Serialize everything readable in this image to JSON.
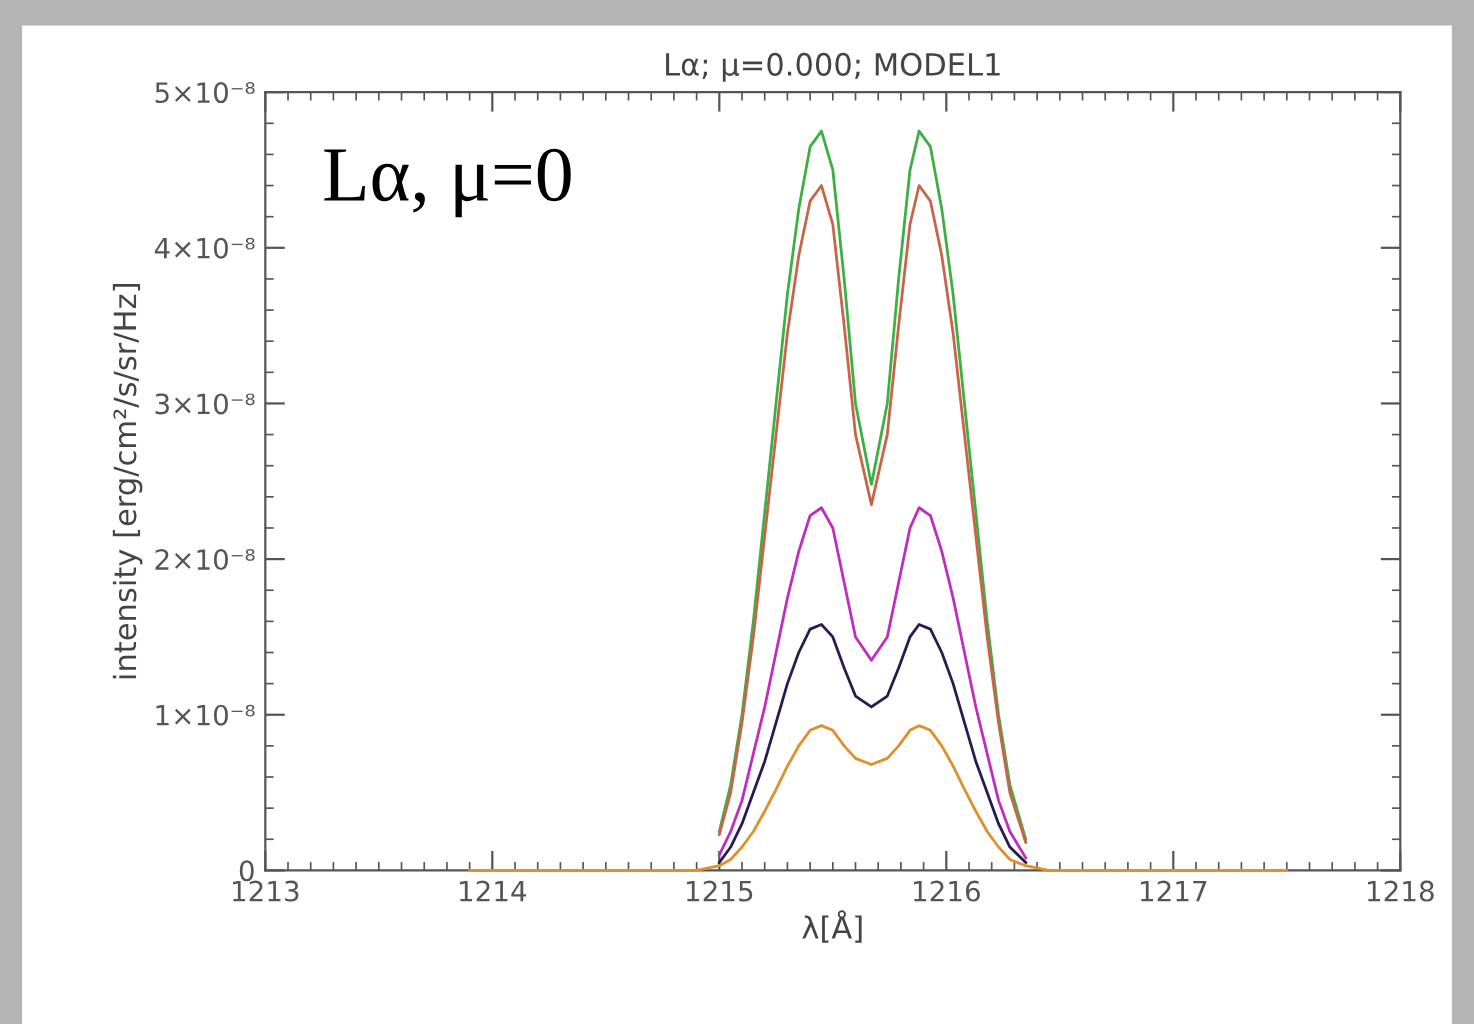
{
  "chart_data": {
    "type": "line",
    "title": "Lα; μ=0.000; MODEL1",
    "xlabel": "λ[Å]",
    "ylabel": "intensity [erg/cm²/s/sr/Hz]",
    "annotations": [
      "Lα, μ=0"
    ],
    "x": [
      1213.9,
      1214.9,
      1215.0,
      1215.05,
      1215.1,
      1215.15,
      1215.2,
      1215.25,
      1215.3,
      1215.35,
      1215.4,
      1215.45,
      1215.5,
      1215.55,
      1215.6,
      1215.67,
      1215.74,
      1215.79,
      1215.84,
      1215.88,
      1215.93,
      1215.98,
      1216.03,
      1216.08,
      1216.13,
      1216.18,
      1216.23,
      1216.28,
      1216.35,
      1216.45,
      1217.5
    ],
    "series": [
      {
        "color": "#3cb043",
        "values": [
          null,
          null,
          2.5e-09,
          5.5e-09,
          1e-08,
          1.6e-08,
          2.3e-08,
          3e-08,
          3.7e-08,
          4.25e-08,
          4.65e-08,
          4.75e-08,
          4.5e-08,
          3.8e-08,
          3e-08,
          2.48e-08,
          3e-08,
          3.8e-08,
          4.5e-08,
          4.75e-08,
          4.65e-08,
          4.25e-08,
          3.7e-08,
          3e-08,
          2.3e-08,
          1.6e-08,
          1e-08,
          5.5e-09,
          2e-09,
          null,
          null
        ]
      },
      {
        "color": "#c8644a",
        "values": [
          null,
          null,
          2.3e-09,
          5e-09,
          9.5e-09,
          1.5e-08,
          2.15e-08,
          2.8e-08,
          3.45e-08,
          3.95e-08,
          4.3e-08,
          4.4e-08,
          4.15e-08,
          3.5e-08,
          2.8e-08,
          2.35e-08,
          2.8e-08,
          3.5e-08,
          4.15e-08,
          4.4e-08,
          4.3e-08,
          3.95e-08,
          3.45e-08,
          2.8e-08,
          2.15e-08,
          1.5e-08,
          9.5e-09,
          5e-09,
          1.8e-09,
          null,
          null
        ]
      },
      {
        "color": "#c02cc0",
        "values": [
          null,
          null,
          1e-09,
          2.5e-09,
          4.5e-09,
          7.5e-09,
          1.05e-08,
          1.4e-08,
          1.75e-08,
          2.05e-08,
          2.28e-08,
          2.33e-08,
          2.2e-08,
          1.85e-08,
          1.5e-08,
          1.35e-08,
          1.5e-08,
          1.85e-08,
          2.2e-08,
          2.33e-08,
          2.28e-08,
          2.05e-08,
          1.75e-08,
          1.4e-08,
          1.05e-08,
          7.5e-09,
          4.5e-09,
          2.5e-09,
          8e-10,
          null,
          null
        ]
      },
      {
        "color": "#2a1a50",
        "values": [
          null,
          null,
          5e-10,
          1.5e-09,
          3e-09,
          5e-09,
          7e-09,
          9.5e-09,
          1.2e-08,
          1.4e-08,
          1.55e-08,
          1.58e-08,
          1.5e-08,
          1.3e-08,
          1.12e-08,
          1.05e-08,
          1.12e-08,
          1.3e-08,
          1.5e-08,
          1.58e-08,
          1.55e-08,
          1.4e-08,
          1.2e-08,
          9.5e-09,
          7e-09,
          5e-09,
          3e-09,
          1.5e-09,
          5e-10,
          null,
          null
        ]
      },
      {
        "color": "#e0902a",
        "values": [
          0,
          0,
          3e-10,
          7e-10,
          1.5e-09,
          2.5e-09,
          3.8e-09,
          5.2e-09,
          6.7e-09,
          8e-09,
          9e-09,
          9.3e-09,
          9e-09,
          8e-09,
          7.2e-09,
          6.8e-09,
          7.2e-09,
          8e-09,
          9e-09,
          9.3e-09,
          9e-09,
          8e-09,
          6.7e-09,
          5.2e-09,
          3.8e-09,
          2.5e-09,
          1.5e-09,
          7e-10,
          3e-10,
          0,
          0
        ]
      }
    ],
    "xlim": [
      1213,
      1218
    ],
    "xticks": [
      1213,
      1214,
      1215,
      1216,
      1217,
      1218
    ],
    "ylim": [
      0,
      5e-08
    ],
    "yticks": [
      0,
      {
        "value": 1e-08,
        "label": "1×10⁻⁸"
      },
      {
        "value": 2e-08,
        "label": "2×10⁻⁸"
      },
      {
        "value": 3e-08,
        "label": "3×10⁻⁸"
      },
      {
        "value": 4e-08,
        "label": "4×10⁻⁸"
      },
      {
        "value": 5e-08,
        "label": "5×10⁻⁸"
      }
    ],
    "grid": false,
    "marker": "none",
    "line_style": "solid"
  }
}
